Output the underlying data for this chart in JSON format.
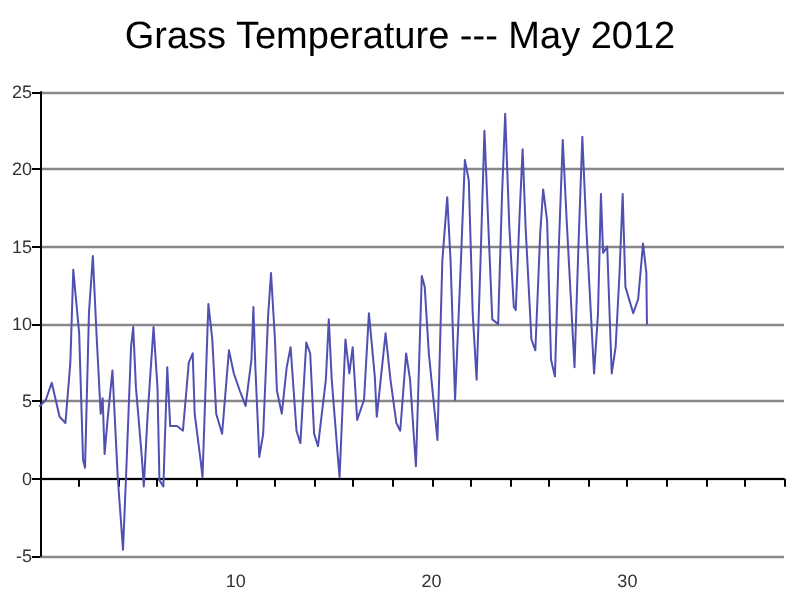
{
  "chart_data": {
    "type": "line",
    "title": "Grass Temperature --- May 2012",
    "x": [
      0,
      0.3,
      0.6,
      1.0,
      1.3,
      1.55,
      1.7,
      2.0,
      2.2,
      2.3,
      2.5,
      2.7,
      2.9,
      3.1,
      3.2,
      3.3,
      3.45,
      3.7,
      3.97,
      4.24,
      4.4,
      4.65,
      4.76,
      4.9,
      5.2,
      5.3,
      5.5,
      5.8,
      6.0,
      6.1,
      6.3,
      6.5,
      6.65,
      7.0,
      7.3,
      7.6,
      7.8,
      7.9,
      8.2,
      8.3,
      8.6,
      8.8,
      9.0,
      9.3,
      9.65,
      9.9,
      10.2,
      10.5,
      10.8,
      10.9,
      11.0,
      11.2,
      11.4,
      11.65,
      11.8,
      12.0,
      12.1,
      12.35,
      12.6,
      12.8,
      13.1,
      13.3,
      13.6,
      13.8,
      14.0,
      14.2,
      14.6,
      14.75,
      14.9,
      15.2,
      15.3,
      15.6,
      15.8,
      15.97,
      16.2,
      16.55,
      16.8,
      17.1,
      17.2,
      17.65,
      17.9,
      18.2,
      18.4,
      18.7,
      18.9,
      19.2,
      19.5,
      19.65,
      19.86,
      20.3,
      20.55,
      20.8,
      20.97,
      21.2,
      21.5,
      21.7,
      21.9,
      22.1,
      22.3,
      22.5,
      22.7,
      22.9,
      23.1,
      23.4,
      23.6,
      23.76,
      23.97,
      24.2,
      24.3,
      24.5,
      24.65,
      24.8,
      25.1,
      25.3,
      25.55,
      25.7,
      25.9,
      26.1,
      26.3,
      26.5,
      26.7,
      26.9,
      27.3,
      27.5,
      27.7,
      27.9,
      28.3,
      28.5,
      28.65,
      28.76,
      28.97,
      29.2,
      29.4,
      29.6,
      29.76,
      29.9,
      30.3,
      30.55,
      30.8,
      30.97,
      31.0
    ],
    "series": [
      {
        "color": "#5050b0",
        "values": [
          4.7,
          5.1,
          6.2,
          4.0,
          3.6,
          7.5,
          13.5,
          9.4,
          1.2,
          0.7,
          10.7,
          14.4,
          9.0,
          4.2,
          5.2,
          1.6,
          3.8,
          7.0,
          0.1,
          -4.6,
          0.3,
          8.5,
          9.8,
          5.9,
          1.4,
          -0.5,
          4.2,
          9.8,
          5.9,
          -0.1,
          -0.5,
          7.2,
          3.4,
          3.4,
          3.1,
          7.5,
          8.1,
          4.2,
          1.2,
          0.1,
          11.3,
          9.0,
          4.2,
          2.9,
          8.3,
          6.8,
          5.7,
          4.7,
          7.7,
          11.1,
          7.2,
          1.4,
          2.9,
          10.5,
          13.3,
          9.0,
          5.7,
          4.2,
          7.2,
          8.5,
          3.1,
          2.3,
          8.8,
          8.1,
          2.9,
          2.1,
          6.4,
          10.3,
          6.4,
          1.6,
          0.1,
          9.0,
          6.8,
          8.5,
          3.8,
          5.1,
          10.7,
          6.6,
          4.0,
          9.4,
          6.4,
          3.6,
          3.1,
          8.1,
          6.4,
          0.8,
          13.1,
          12.4,
          8.1,
          2.5,
          14.1,
          18.2,
          14.1,
          5.1,
          14.1,
          20.6,
          19.3,
          10.7,
          6.4,
          14.1,
          22.5,
          16.3,
          10.3,
          10.0,
          18.4,
          23.6,
          16.3,
          11.1,
          10.9,
          17.2,
          21.3,
          16.3,
          9.0,
          8.3,
          15.9,
          18.7,
          16.7,
          7.7,
          6.6,
          15.0,
          21.9,
          16.7,
          7.2,
          15.0,
          22.1,
          16.3,
          6.8,
          10.7,
          18.4,
          14.6,
          15.0,
          6.8,
          8.5,
          13.3,
          18.4,
          12.4,
          10.7,
          11.6,
          15.2,
          13.3,
          10.0
        ]
      }
    ],
    "xlim": [
      0,
      38
    ],
    "xticks": [
      {
        "value": 0,
        "label": null
      },
      {
        "value": 2,
        "label": null
      },
      {
        "value": 4,
        "label": null
      },
      {
        "value": 6,
        "label": null
      },
      {
        "value": 8,
        "label": null
      },
      10,
      {
        "value": 12,
        "label": null
      },
      {
        "value": 14,
        "label": null
      },
      {
        "value": 16,
        "label": null
      },
      {
        "value": 18,
        "label": null
      },
      20,
      {
        "value": 22,
        "label": null
      },
      {
        "value": 24,
        "label": null
      },
      {
        "value": 26,
        "label": null
      },
      {
        "value": 28,
        "label": null
      },
      30,
      {
        "value": 32,
        "label": null
      },
      {
        "value": 34,
        "label": null
      },
      {
        "value": 36,
        "label": null
      },
      {
        "value": 38,
        "label": null
      }
    ],
    "ylim": [
      -5,
      25
    ],
    "yticks": [
      -5,
      0,
      5,
      10,
      15,
      20,
      25
    ],
    "grid": "y",
    "marker": "none",
    "line_style": "solid"
  }
}
